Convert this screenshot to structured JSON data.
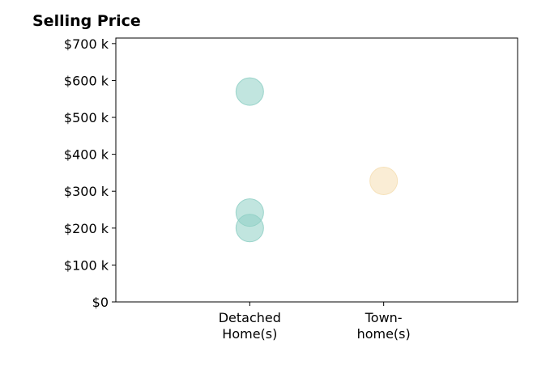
{
  "chart_data": {
    "type": "scatter",
    "title": "Selling Price",
    "xlabel": "",
    "ylabel": "",
    "categories": [
      [
        "Detached",
        "Home(s)"
      ],
      [
        "Town-",
        "home(s)"
      ]
    ],
    "points": [
      {
        "category": 0,
        "value": 570000,
        "color": "#8ecfc4"
      },
      {
        "category": 0,
        "value": 242000,
        "color": "#8ecfc4"
      },
      {
        "category": 0,
        "value": 200000,
        "color": "#8ecfc4"
      },
      {
        "category": 1,
        "value": 328000,
        "color": "#f5deb3"
      }
    ],
    "yticks": [
      0,
      100000,
      200000,
      300000,
      400000,
      500000,
      600000,
      700000
    ],
    "ytick_labels": [
      "$0",
      "$100 k",
      "$200 k",
      "$300 k",
      "$400 k",
      "$500 k",
      "$600 k",
      "$700 k"
    ],
    "ylim": [
      0,
      715000
    ],
    "xlim": [
      -1,
      2
    ],
    "grid": false,
    "legend": "none"
  }
}
